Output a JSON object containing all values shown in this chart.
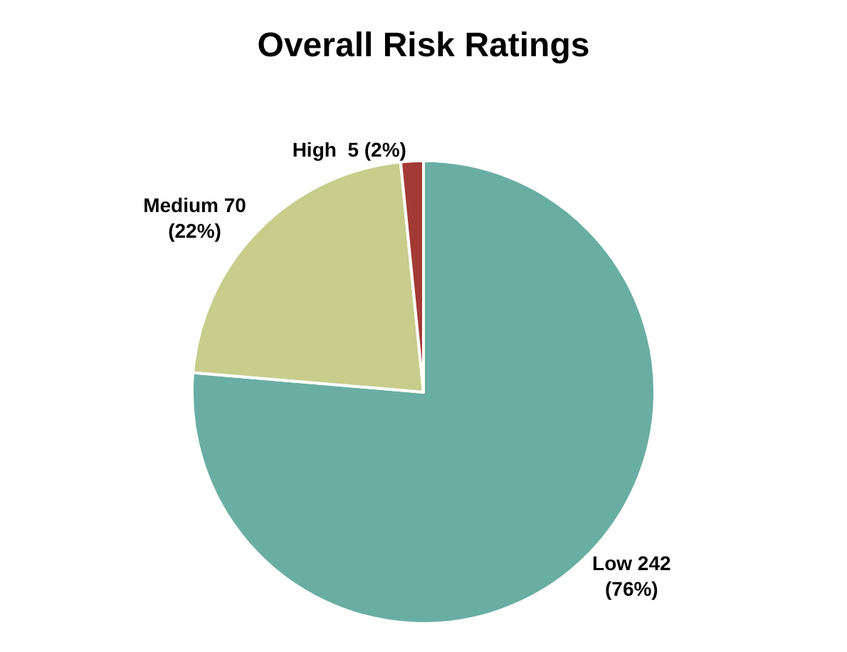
{
  "chart_data": {
    "type": "pie",
    "title": "Overall Risk Ratings",
    "categories": [
      "Low",
      "Medium",
      "High"
    ],
    "values": [
      242,
      70,
      5
    ],
    "colors": [
      "#6aaea3",
      "#c8cd8c",
      "#a33a35"
    ],
    "value_labels": [
      "242\n(76%)",
      "70\n(22%)",
      " 5 (2%)"
    ],
    "legend": false
  }
}
